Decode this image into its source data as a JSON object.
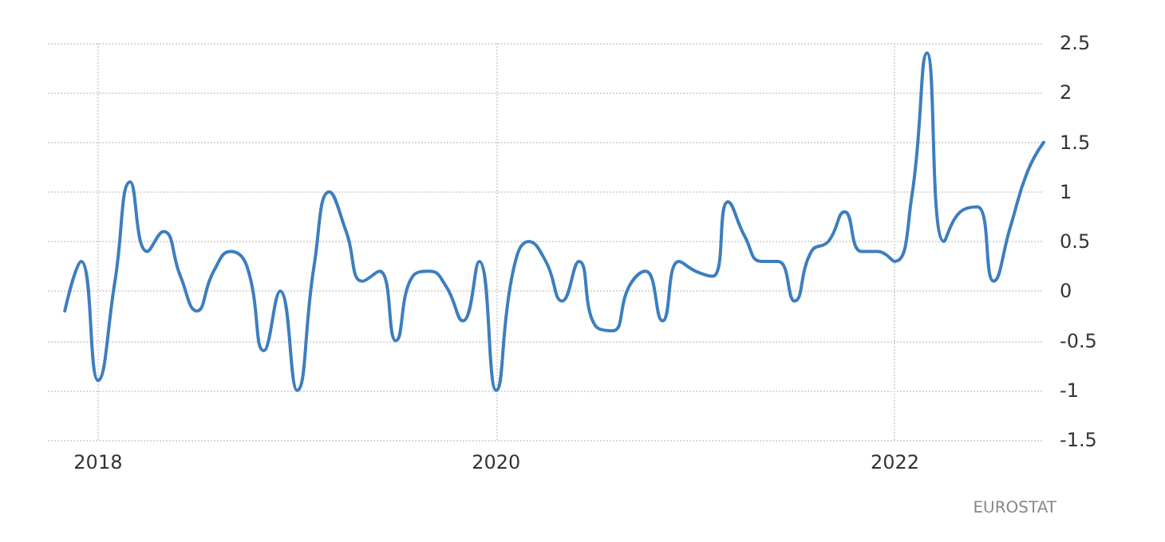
{
  "chart_data": {
    "type": "line",
    "x": [
      "2017-11",
      "2017-12",
      "2018-01",
      "2018-02",
      "2018-03",
      "2018-04",
      "2018-05",
      "2018-06",
      "2018-07",
      "2018-08",
      "2018-09",
      "2018-10",
      "2018-11",
      "2018-12",
      "2019-01",
      "2019-02",
      "2019-03",
      "2019-04",
      "2019-05",
      "2019-06",
      "2019-07",
      "2019-08",
      "2019-09",
      "2019-10",
      "2019-11",
      "2019-12",
      "2020-01",
      "2020-02",
      "2020-03",
      "2020-04",
      "2020-05",
      "2020-06",
      "2020-07",
      "2020-08",
      "2020-09",
      "2020-10",
      "2020-11",
      "2020-12",
      "2021-01",
      "2021-02",
      "2021-03",
      "2021-04",
      "2021-05",
      "2021-06",
      "2021-07",
      "2021-08",
      "2021-09",
      "2021-10",
      "2021-11",
      "2021-12",
      "2022-01",
      "2022-02",
      "2022-03",
      "2022-04",
      "2022-05",
      "2022-06",
      "2022-07",
      "2022-08",
      "2022-09",
      "2022-10"
    ],
    "series": [
      {
        "color": "#3d7ebf",
        "values": [
          -0.2,
          0.3,
          -0.9,
          0.1,
          1.1,
          0.4,
          0.6,
          0.15,
          -0.2,
          0.2,
          0.4,
          0.25,
          -0.6,
          0.0,
          -1.0,
          0.25,
          1.0,
          0.6,
          0.1,
          0.2,
          -0.5,
          0.15,
          0.2,
          0.05,
          -0.3,
          0.3,
          -1.0,
          0.2,
          0.5,
          0.3,
          -0.1,
          0.3,
          -0.35,
          -0.4,
          0.05,
          0.2,
          -0.3,
          0.3,
          0.2,
          0.15,
          0.9,
          0.55,
          0.3,
          0.3,
          -0.1,
          0.4,
          0.5,
          0.8,
          0.4,
          0.4,
          0.3,
          0.95,
          2.4,
          0.5,
          0.8,
          0.85,
          0.1,
          0.65,
          1.2,
          1.5
        ]
      }
    ],
    "xlim": [
      "2017-10",
      "2022-10"
    ],
    "xticks": [
      "2018",
      "2020",
      "2022"
    ],
    "ylim": [
      -1.5,
      2.5
    ],
    "yticks": [
      -1.5,
      -1,
      -0.5,
      0,
      0.5,
      1,
      1.5,
      2,
      2.5
    ],
    "grid": true,
    "marker": "none",
    "line_style": "solid",
    "annotations": [
      "EUROSTAT"
    ]
  }
}
